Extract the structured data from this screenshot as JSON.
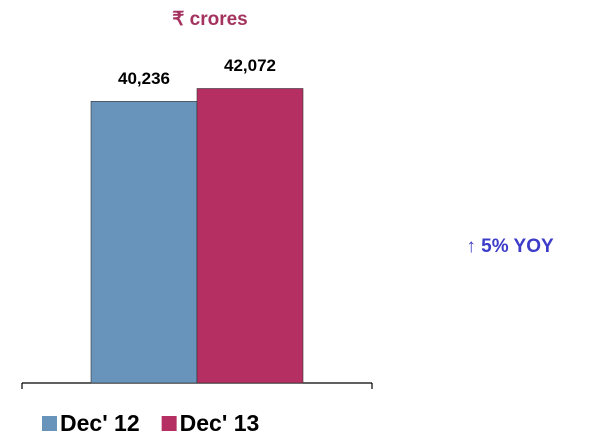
{
  "chart_data": {
    "type": "bar",
    "title": "₹ crores",
    "annotation": "↑ 5% YOY",
    "categories": [
      null
    ],
    "series": [
      {
        "name": "Dec' 12",
        "color": "#6893ba",
        "values": [
          40236
        ],
        "value_labels": [
          "40,236"
        ]
      },
      {
        "name": "Dec' 13",
        "color": "#b62f62",
        "values": [
          42072
        ],
        "value_labels": [
          "42,072"
        ]
      }
    ],
    "ylim": [
      0,
      45000
    ]
  }
}
